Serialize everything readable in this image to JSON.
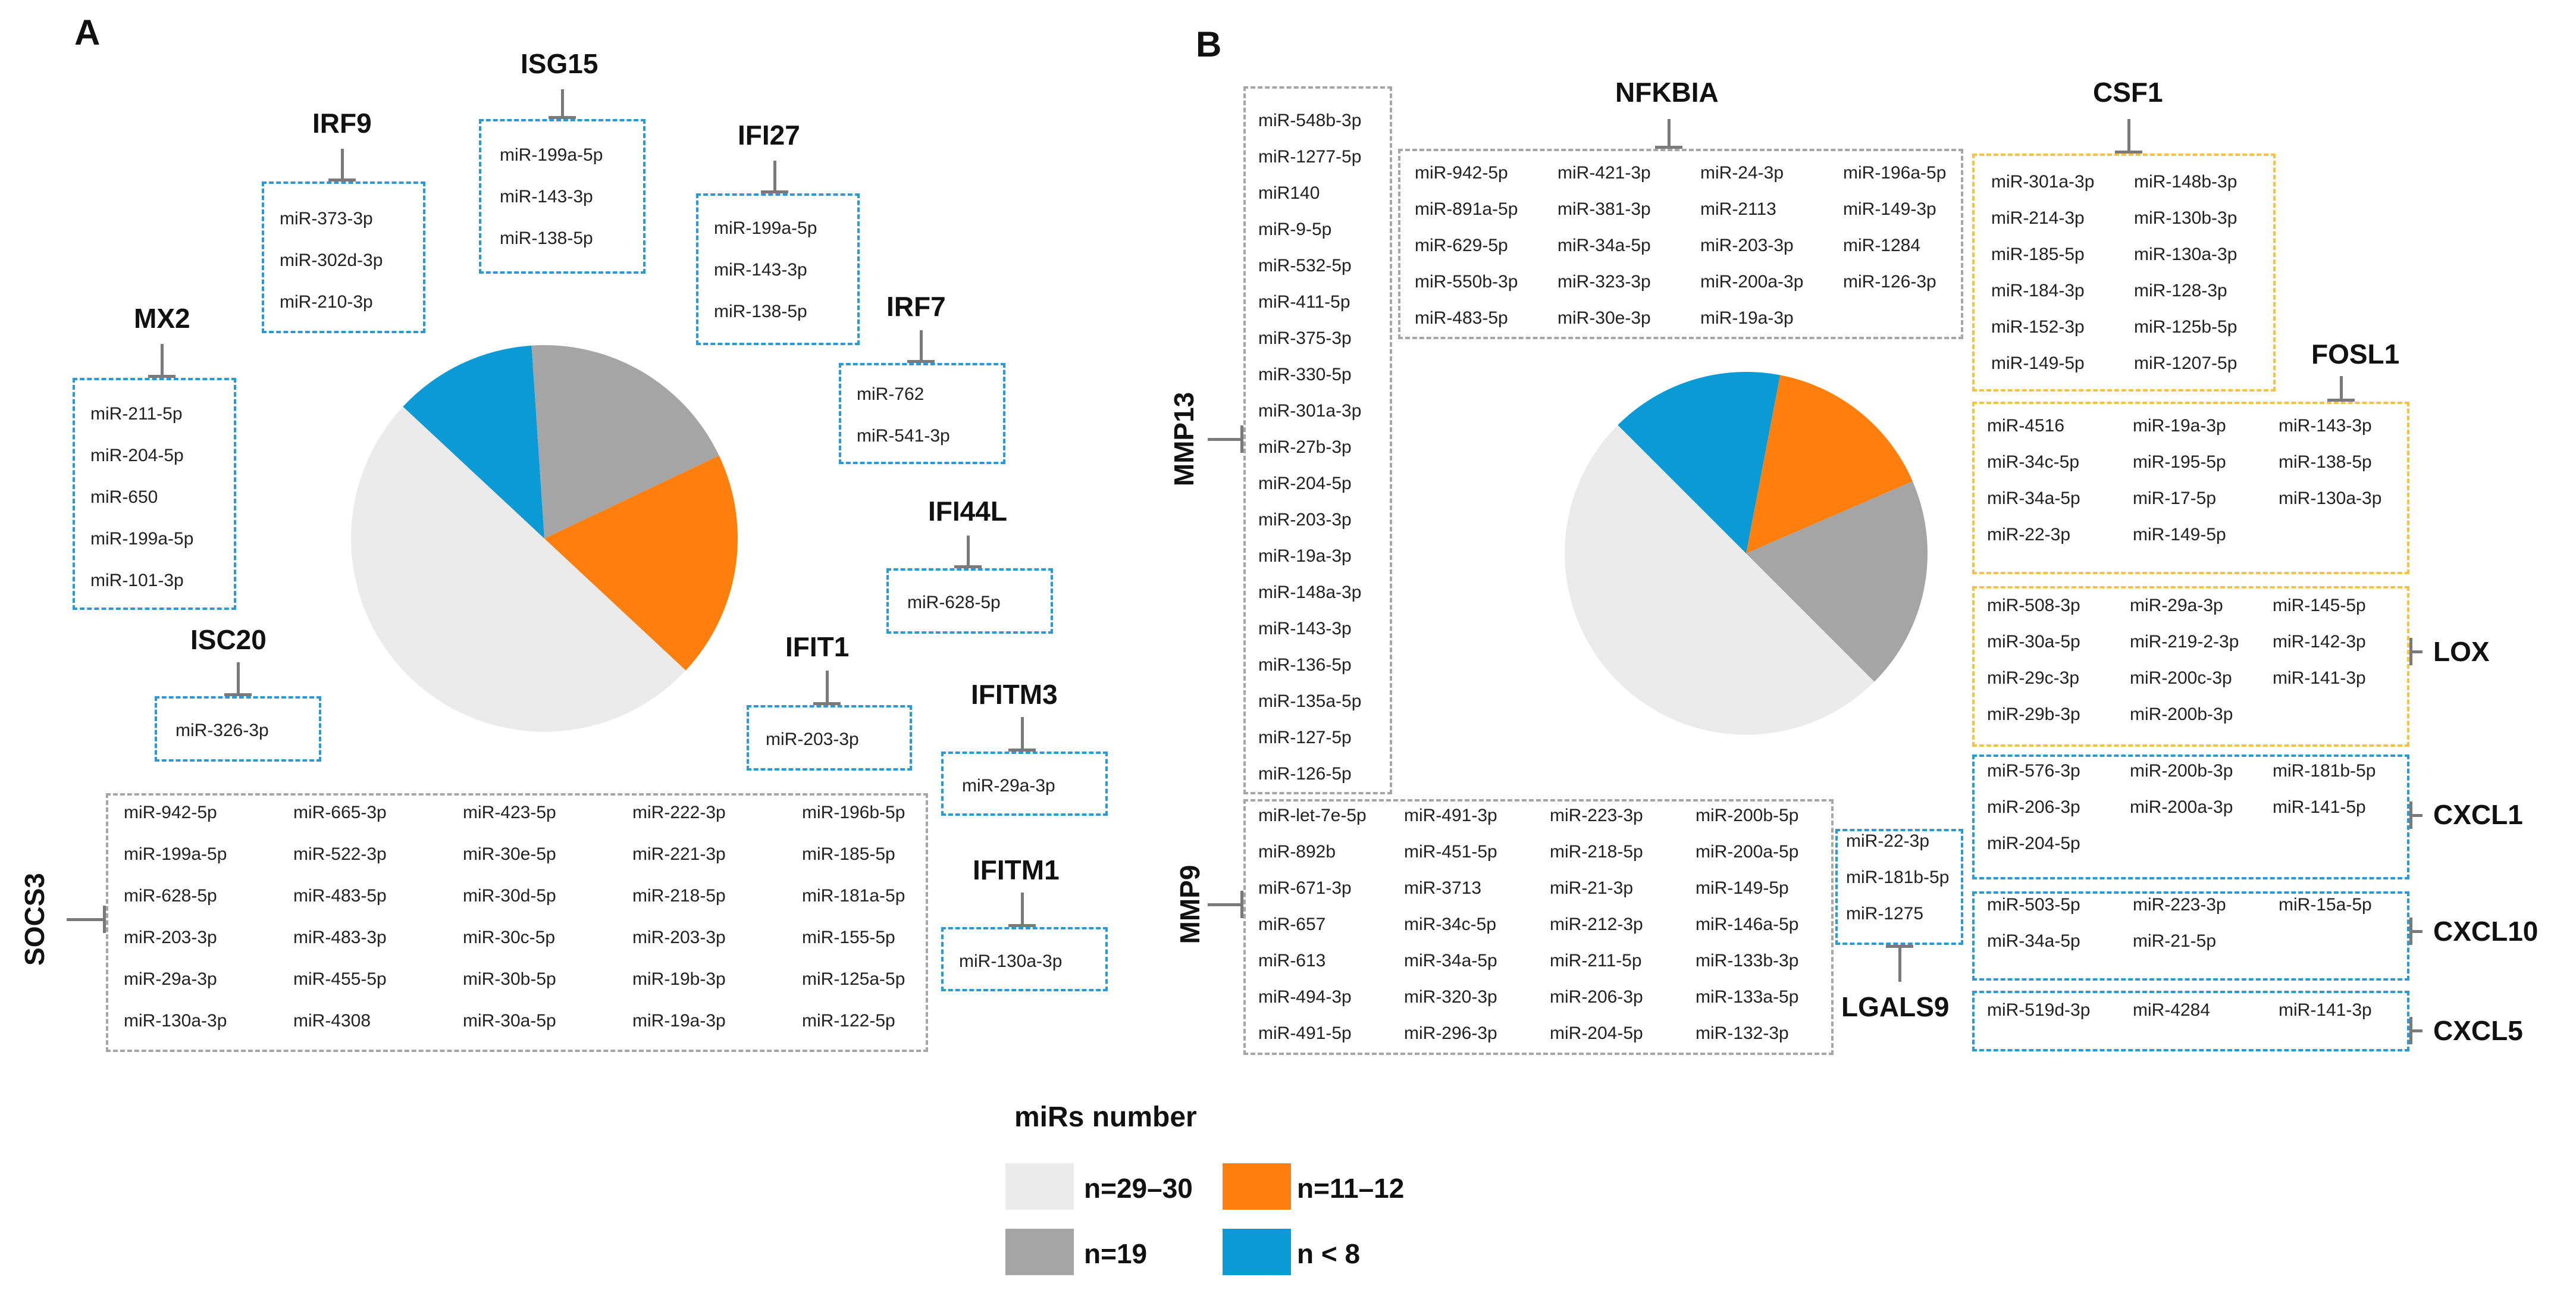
{
  "panels": [
    {
      "letter": "A",
      "pie": [
        {
          "label": "n=29–30",
          "fraction": 0.5,
          "color": "#ebebeb"
        },
        {
          "label": "n=11–12",
          "fraction": 0.19,
          "color": "#ff7f0e"
        },
        {
          "label": "n=19",
          "fraction": 0.19,
          "color": "#a5a5a5"
        },
        {
          "label": "n < 8",
          "fraction": 0.12,
          "color": "#0a9ad6"
        }
      ],
      "targets": [
        {
          "gene": "ISG15",
          "mirs": [
            "miR-199a-5p",
            "miR-143-3p",
            "miR-138-5p"
          ]
        },
        {
          "gene": "IRF9",
          "mirs": [
            "miR-373-3p",
            "miR-302d-3p",
            "miR-210-3p"
          ]
        },
        {
          "gene": "IFI27",
          "mirs": [
            "miR-199a-5p",
            "miR-143-3p",
            "miR-138-5p"
          ]
        },
        {
          "gene": "MX2",
          "mirs": [
            "miR-211-5p",
            "miR-204-5p",
            "miR-650",
            "miR-199a-5p",
            "miR-101-3p"
          ]
        },
        {
          "gene": "IRF7",
          "mirs": [
            "miR-762",
            "miR-541-3p"
          ]
        },
        {
          "gene": "IFI44L",
          "mirs": [
            "miR-628-5p"
          ]
        },
        {
          "gene": "ISC20",
          "mirs": [
            "miR-326-3p"
          ]
        },
        {
          "gene": "IFIT1",
          "mirs": [
            "miR-203-3p"
          ]
        },
        {
          "gene": "IFITM3",
          "mirs": [
            "miR-29a-3p"
          ]
        },
        {
          "gene": "IFITM1",
          "mirs": [
            "miR-130a-3p"
          ]
        },
        {
          "gene": "SOCS3",
          "mirs": [
            "miR-942-5p",
            "miR-665-3p",
            "miR-423-5p",
            "miR-222-3p",
            "miR-196b-5p",
            "miR-199a-5p",
            "miR-522-3p",
            "miR-30e-5p",
            "miR-221-3p",
            "miR-185-5p",
            "miR-628-5p",
            "miR-483-5p",
            "miR-30d-5p",
            "miR-218-5p",
            "miR-181a-5p",
            "miR-203-3p",
            "miR-483-3p",
            "miR-30c-5p",
            "miR-203-3p",
            "miR-155-5p",
            "miR-29a-3p",
            "miR-455-5p",
            "miR-30b-5p",
            "miR-19b-3p",
            "miR-125a-5p",
            "miR-130a-3p",
            "miR-4308",
            "miR-30a-5p",
            "miR-19a-3p",
            "miR-122-5p"
          ]
        }
      ]
    },
    {
      "letter": "B",
      "pie": [
        {
          "label": "n=29–30",
          "fraction": 0.5,
          "color": "#ebebeb"
        },
        {
          "label": "n=19",
          "fraction": 0.19,
          "color": "#a5a5a5"
        },
        {
          "label": "n=11–12",
          "fraction": 0.155,
          "color": "#ff7f0e"
        },
        {
          "label": "n < 8",
          "fraction": 0.155,
          "color": "#0a9ad6"
        }
      ],
      "targets": [
        {
          "gene": "MMP13",
          "mirs": [
            "miR-548b-3p",
            "miR-1277-5p",
            "miR140",
            "miR-9-5p",
            "miR-532-5p",
            "miR-411-5p",
            "miR-375-3p",
            "miR-330-5p",
            "miR-301a-3p",
            "miR-27b-3p",
            "miR-204-5p",
            "miR-203-3p",
            "miR-19a-3p",
            "miR-148a-3p",
            "miR-143-3p",
            "miR-136-5p",
            "miR-135a-5p",
            "miR-127-5p",
            "miR-126-5p"
          ]
        },
        {
          "gene": "NFKBIA",
          "mirs": [
            "miR-942-5p",
            "miR-421-3p",
            "miR-24-3p",
            "miR-196a-5p",
            "miR-891a-5p",
            "miR-381-3p",
            "miR-2113",
            "miR-149-3p",
            "miR-629-5p",
            "miR-34a-5p",
            "miR-203-3p",
            "miR-1284",
            "miR-550b-3p",
            "miR-323-3p",
            "miR-200a-3p",
            "miR-126-3p",
            "miR-483-5p",
            "miR-30e-3p",
            "miR-19a-3p"
          ]
        },
        {
          "gene": "CSF1",
          "mirs": [
            "miR-301a-3p",
            "miR-148b-3p",
            "miR-214-3p",
            "miR-130b-3p",
            "miR-185-5p",
            "miR-130a-3p",
            "miR-184-3p",
            "miR-128-3p",
            "miR-152-3p",
            "miR-125b-5p",
            "miR-149-5p",
            "miR-1207-5p"
          ]
        },
        {
          "gene": "FOSL1",
          "mirs": [
            "miR-4516",
            "miR-19a-3p",
            "miR-143-3p",
            "miR-34c-5p",
            "miR-195-5p",
            "miR-138-5p",
            "miR-34a-5p",
            "miR-17-5p",
            "miR-130a-3p",
            "miR-22-3p",
            "miR-149-5p"
          ]
        },
        {
          "gene": "LOX",
          "mirs": [
            "miR-508-3p",
            "miR-29a-3p",
            "miR-145-5p",
            "miR-30a-5p",
            "miR-219-2-3p",
            "miR-142-3p",
            "miR-29c-3p",
            "miR-200c-3p",
            "miR-141-3p",
            "miR-29b-3p",
            "miR-200b-3p"
          ]
        },
        {
          "gene": "CXCL1",
          "mirs": [
            "miR-576-3p",
            "miR-200b-3p",
            "miR-181b-5p",
            "miR-206-3p",
            "miR-200a-3p",
            "miR-141-5p",
            "miR-204-5p"
          ]
        },
        {
          "gene": "CXCL10",
          "mirs": [
            "miR-503-5p",
            "miR-223-3p",
            "miR-15a-5p",
            "miR-34a-5p",
            "miR-21-5p"
          ]
        },
        {
          "gene": "CXCL5",
          "mirs": [
            "miR-519d-3p",
            "miR-4284",
            "miR-141-3p"
          ]
        },
        {
          "gene": "MMP9",
          "mirs": [
            "miR-let-7e-5p",
            "miR-491-3p",
            "miR-223-3p",
            "miR-200b-5p",
            "miR-892b",
            "miR-451-5p",
            "miR-218-5p",
            "miR-200a-5p",
            "miR-671-3p",
            "miR-3713",
            "miR-21-3p",
            "miR-149-5p",
            "miR-657",
            "miR-34c-5p",
            "miR-212-3p",
            "miR-146a-5p",
            "miR-613",
            "miR-34a-5p",
            "miR-211-5p",
            "miR-133b-3p",
            "miR-494-3p",
            "miR-320-3p",
            "miR-206-3p",
            "miR-133a-5p",
            "miR-491-5p",
            "miR-296-3p",
            "miR-204-5p",
            "miR-132-3p"
          ]
        },
        {
          "gene": "LGALS9",
          "mirs": [
            "miR-22-3p",
            "miR-181b-5p",
            "miR-1275"
          ]
        }
      ]
    }
  ],
  "legend": {
    "title": "miRs number",
    "items": [
      {
        "label": "n=29–30",
        "color": "#ebebeb"
      },
      {
        "label": "n=11–12",
        "color": "#ff7f0e"
      },
      {
        "label": "n=19",
        "color": "#a5a5a5"
      },
      {
        "label": "n < 8",
        "color": "#0a9ad6"
      }
    ]
  }
}
